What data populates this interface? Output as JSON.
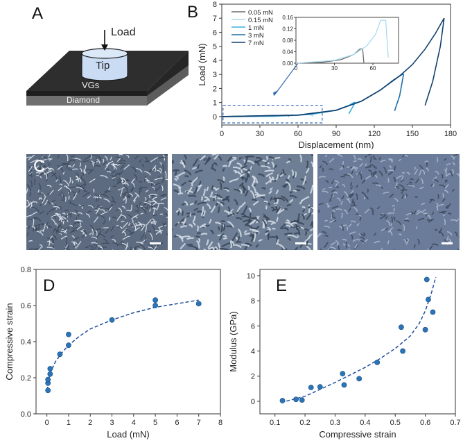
{
  "figure": {
    "panels": [
      "A",
      "B",
      "C",
      "D",
      "E"
    ]
  },
  "panel_a": {
    "label": "A",
    "load_label": "Load",
    "tip_label": "Tip",
    "vgs_label": "VGs",
    "diamond_label": "Diamond"
  },
  "panel_c": {
    "label": "C",
    "images": [
      "sem-image-1",
      "sem-image-2",
      "sem-image-3"
    ]
  },
  "colors": {
    "series_005": "#6b6b6b",
    "series_015": "#a9dcf0",
    "series_1": "#3ab0df",
    "series_3": "#1d6fa8",
    "series_7": "#12416e",
    "marker": "#2b74b6",
    "fit": "#1f4e9a",
    "sem_bg": "#6e7d92"
  },
  "chart_data": [
    {
      "id": "B",
      "type": "line",
      "title": "",
      "xlabel": "Displacement (nm)",
      "ylabel": "Load (mN)",
      "xlim": [
        0,
        180
      ],
      "ylim": [
        -0.6,
        8
      ],
      "xticks": [
        0,
        30,
        60,
        90,
        120,
        150,
        180
      ],
      "yticks": [
        0,
        1,
        2,
        3,
        4,
        5,
        6,
        7,
        8
      ],
      "legend": [
        "0.05 mN",
        "0.15 mN",
        "1 mN",
        "3 mN",
        "7 mN"
      ],
      "series": [
        {
          "name": "0.05 mN",
          "x": [
            0,
            20,
            35,
            45,
            50,
            52,
            53
          ],
          "y": [
            0,
            0.003,
            0.012,
            0.03,
            0.05,
            0.05,
            0.0
          ]
        },
        {
          "name": "0.15 mN",
          "x": [
            0,
            30,
            45,
            55,
            62,
            66,
            70,
            72
          ],
          "y": [
            0,
            0.01,
            0.03,
            0.06,
            0.1,
            0.15,
            0.15,
            0.02
          ]
        },
        {
          "name": "1 mN",
          "x": [
            0,
            40,
            70,
            90,
            100,
            104,
            105,
            100
          ],
          "y": [
            0,
            0.03,
            0.15,
            0.45,
            0.8,
            1.0,
            1.0,
            0.2
          ]
        },
        {
          "name": "3 mN",
          "x": [
            0,
            60,
            90,
            110,
            125,
            135,
            142,
            143,
            140,
            136
          ],
          "y": [
            0,
            0.1,
            0.45,
            1.1,
            1.9,
            2.6,
            3.0,
            3.0,
            1.5,
            0.4
          ]
        },
        {
          "name": "7 mN",
          "x": [
            0,
            60,
            90,
            110,
            125,
            140,
            150,
            160,
            168,
            173,
            175,
            172,
            166,
            160
          ],
          "y": [
            0,
            0.1,
            0.45,
            1.1,
            1.9,
            2.9,
            3.7,
            4.8,
            5.9,
            6.7,
            7.0,
            5.0,
            2.5,
            0.8
          ]
        }
      ],
      "inset": {
        "xlim": [
          0,
          80
        ],
        "ylim": [
          0,
          0.16
        ],
        "xticks": [
          0,
          30,
          60
        ],
        "yticks": [
          0,
          0.04,
          0.08,
          0.12,
          0.16
        ],
        "ytick_labels": [
          "0.00",
          "0.04",
          "0.08",
          "0.12",
          "0.16"
        ]
      }
    },
    {
      "id": "D",
      "type": "scatter",
      "xlabel": "Load (mN)",
      "ylabel": "Compressive strain",
      "xlim": [
        -0.5,
        8
      ],
      "ylim": [
        0,
        0.8
      ],
      "xticks": [
        0,
        1,
        2,
        3,
        4,
        5,
        6,
        7,
        8
      ],
      "yticks": [
        0,
        0.2,
        0.4,
        0.6,
        0.8
      ],
      "ytick_labels": [
        "0.0",
        "0.2",
        "0.4",
        "0.6",
        "0.8"
      ],
      "points": [
        {
          "x": 0.05,
          "y": 0.13
        },
        {
          "x": 0.05,
          "y": 0.17
        },
        {
          "x": 0.05,
          "y": 0.19
        },
        {
          "x": 0.15,
          "y": 0.22
        },
        {
          "x": 0.15,
          "y": 0.25
        },
        {
          "x": 0.6,
          "y": 0.33
        },
        {
          "x": 1.0,
          "y": 0.38
        },
        {
          "x": 1.0,
          "y": 0.44
        },
        {
          "x": 3.0,
          "y": 0.52
        },
        {
          "x": 5.0,
          "y": 0.6
        },
        {
          "x": 5.0,
          "y": 0.63
        },
        {
          "x": 7.0,
          "y": 0.61
        }
      ],
      "fit": {
        "x": [
          0.02,
          0.05,
          0.1,
          0.2,
          0.4,
          0.7,
          1,
          1.5,
          2,
          3,
          4,
          5,
          6,
          7
        ],
        "y": [
          0.13,
          0.17,
          0.2,
          0.24,
          0.29,
          0.34,
          0.38,
          0.43,
          0.47,
          0.52,
          0.56,
          0.59,
          0.61,
          0.63
        ]
      }
    },
    {
      "id": "E",
      "type": "scatter",
      "xlabel": "Compressive strain",
      "ylabel": "Modulus (GPa)",
      "xlim": [
        0.05,
        0.7
      ],
      "ylim": [
        -1,
        10.5
      ],
      "xticks": [
        0.1,
        0.2,
        0.3,
        0.4,
        0.5,
        0.6,
        0.7
      ],
      "yticks": [
        0,
        2,
        4,
        6,
        8,
        10
      ],
      "points": [
        {
          "x": 0.125,
          "y": 0.05
        },
        {
          "x": 0.17,
          "y": 0.15
        },
        {
          "x": 0.19,
          "y": 0.1
        },
        {
          "x": 0.22,
          "y": 1.1
        },
        {
          "x": 0.25,
          "y": 1.15
        },
        {
          "x": 0.325,
          "y": 2.2
        },
        {
          "x": 0.33,
          "y": 1.3
        },
        {
          "x": 0.38,
          "y": 1.8
        },
        {
          "x": 0.44,
          "y": 3.1
        },
        {
          "x": 0.52,
          "y": 5.9
        },
        {
          "x": 0.525,
          "y": 4.0
        },
        {
          "x": 0.6,
          "y": 5.7
        },
        {
          "x": 0.605,
          "y": 9.7
        },
        {
          "x": 0.61,
          "y": 8.1
        },
        {
          "x": 0.625,
          "y": 7.1
        }
      ],
      "fit": {
        "x": [
          0.12,
          0.2,
          0.3,
          0.4,
          0.45,
          0.5,
          0.55,
          0.58,
          0.6,
          0.62,
          0.635
        ],
        "y": [
          -0.1,
          0.4,
          1.5,
          2.7,
          3.4,
          4.2,
          5.2,
          6.2,
          7.2,
          8.6,
          9.9
        ]
      }
    }
  ]
}
